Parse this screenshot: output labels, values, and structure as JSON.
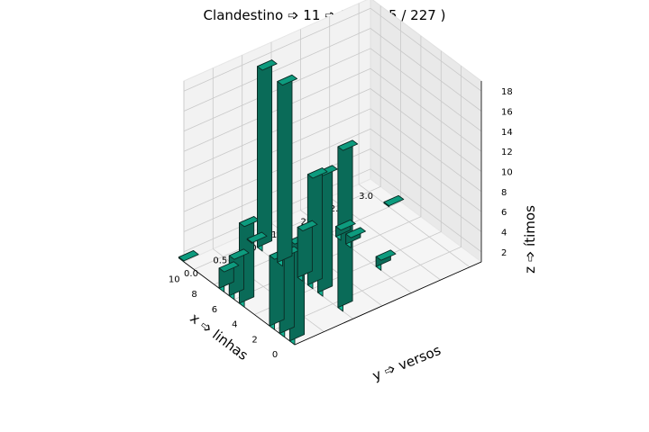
{
  "chart_data": {
    "type": "bar3d",
    "title": "Clandestino ➩ 11 ➩ 118 ( 35 / 227 )",
    "xlabel": "x ➩ linhas",
    "ylabel": "y ➩ versos",
    "zlabel": "z ➩ ítimos",
    "x_ticks": [
      "0",
      "2",
      "4",
      "6",
      "8",
      "10"
    ],
    "y_ticks": [
      "0.0",
      "0.5",
      "1.0",
      "1.5",
      "2.0",
      "2.5",
      "3.0"
    ],
    "z_ticks": [
      "2",
      "4",
      "6",
      "8",
      "10",
      "12",
      "14",
      "16",
      "18"
    ],
    "xlim": [
      0,
      11
    ],
    "ylim": [
      0,
      3.2
    ],
    "zlim": [
      1,
      19
    ],
    "bar_color": "#13b493",
    "bars": [
      {
        "x": 0,
        "y": 0,
        "z": 11
      },
      {
        "x": 1,
        "y": 0,
        "z": 9
      },
      {
        "x": 1,
        "y": 1,
        "z": 17
      },
      {
        "x": 2,
        "y": 0,
        "z": 8
      },
      {
        "x": 3,
        "y": 1,
        "z": 13
      },
      {
        "x": 3,
        "y": 2,
        "z": 2
      },
      {
        "x": 4,
        "y": 1,
        "z": 12
      },
      {
        "x": 5,
        "y": 0,
        "z": 9
      },
      {
        "x": 5,
        "y": 1,
        "z": 6
      },
      {
        "x": 6,
        "y": 0,
        "z": 5
      },
      {
        "x": 6,
        "y": 2,
        "z": 2
      },
      {
        "x": 7,
        "y": 0,
        "z": 3
      },
      {
        "x": 7,
        "y": 1,
        "z": 19
      },
      {
        "x": 7,
        "y": 2,
        "z": 2
      },
      {
        "x": 8,
        "y": 3,
        "z": 1
      },
      {
        "x": 9,
        "y": 1,
        "z": 19
      },
      {
        "x": 10,
        "y": 1,
        "z": 1
      },
      {
        "x": 11,
        "y": 0,
        "z": 1
      }
    ]
  }
}
